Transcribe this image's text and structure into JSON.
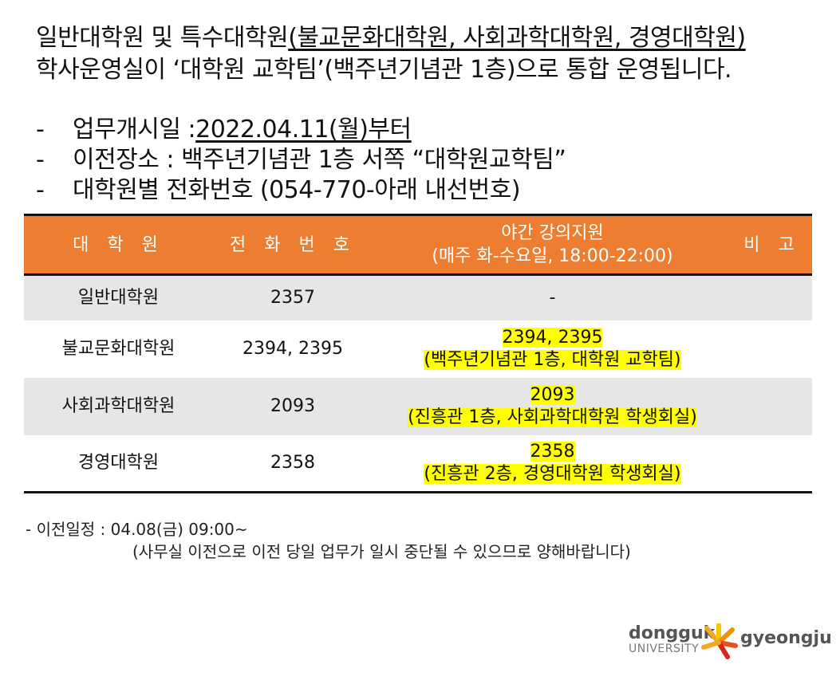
{
  "intro": {
    "line1_pre": "일반대학원 및 특수대학원",
    "line1_underlined": "(불교문화대학원, 사회과학대학원, 경영대학원)",
    "line2": "학사운영실이 ‘대학원 교학팀’(백주년기념관 1층)으로 통합 운영됩니다."
  },
  "bullets": [
    {
      "dash": "-",
      "label": "업무개시일 : ",
      "value": "2022.04.11(월)부터"
    },
    {
      "dash": "-",
      "label": "이전장소 : 백주년기념관 1층 서쪽 “대학원교학팀”",
      "value": ""
    },
    {
      "dash": "-",
      "label": "대학원별 전화번호 (054-770-아래 내선번호)",
      "value": ""
    }
  ],
  "table": {
    "headers": {
      "col1": "대 학 원",
      "col2": "전 화 번 호",
      "col3_line1": "야간 강의지원",
      "col3_line2": "(매주 화-수요일, 18:00-22:00)",
      "col4": "비 고"
    },
    "rows": [
      {
        "school": "일반대학원",
        "phone": "2357",
        "night_phone": "-",
        "night_place": "",
        "note": ""
      },
      {
        "school": "불교문화대학원",
        "phone": "2394, 2395",
        "night_phone": "2394, 2395",
        "night_place": "(백주년기념관 1층, 대학원 교학팀)",
        "note": ""
      },
      {
        "school": "사회과학대학원",
        "phone": "2093",
        "night_phone": "2093",
        "night_place": "(진흥관 1층, 사회과학대학원 학생회실)",
        "note": ""
      },
      {
        "school": "경영대학원",
        "phone": "2358",
        "night_phone": "2358",
        "night_place": "(진흥관 2층, 경영대학원 학생회실)",
        "note": ""
      }
    ]
  },
  "footer": {
    "line1": "-  이전일정 : 04.08(금) 09:00~",
    "line2": "(사무실 이전으로 이전 당일 업무가 일시 중단될 수 있으므로 양해바랍니다)"
  },
  "logo": {
    "word1": "dongguk",
    "word2": "UNIVERSITY",
    "word3": "gyeongju"
  },
  "colors": {
    "header_bg": "#ed7d31",
    "highlight": "#ffff00",
    "row_shade": "#e6e6e6"
  }
}
